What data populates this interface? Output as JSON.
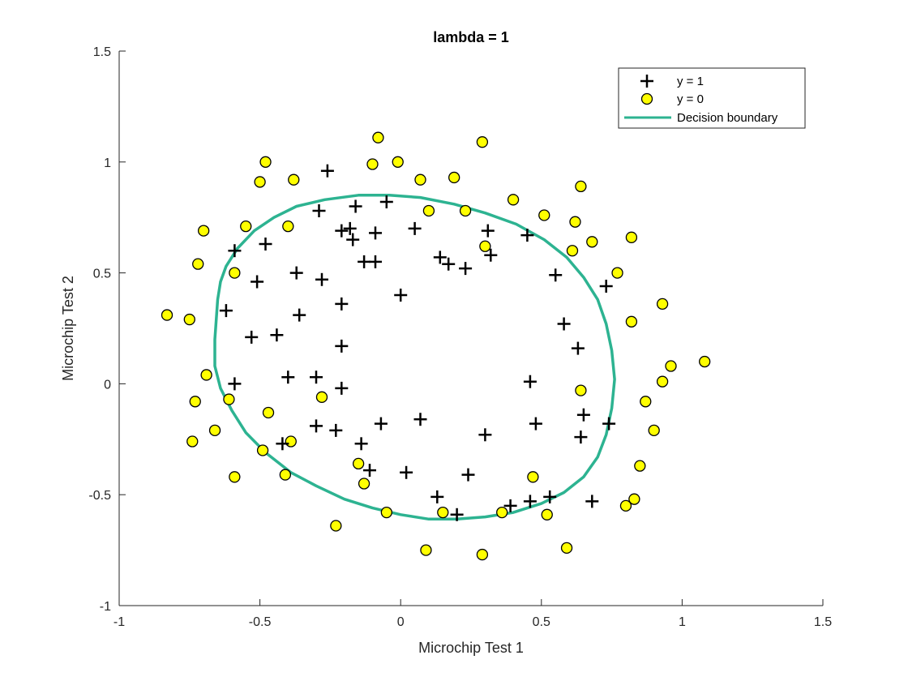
{
  "chart_data": {
    "type": "scatter",
    "title": "lambda = 1",
    "xlabel": "Microchip Test 1",
    "ylabel": "Microchip Test 2",
    "xlim": [
      -1,
      1.5
    ],
    "ylim": [
      -1,
      1.5
    ],
    "xticks": [
      -1,
      -0.5,
      0,
      0.5,
      1,
      1.5
    ],
    "yticks": [
      -1,
      -0.5,
      0,
      0.5,
      1,
      1.5
    ],
    "xtick_labels": [
      "-1",
      "-0.5",
      "0",
      "0.5",
      "1",
      "1.5"
    ],
    "ytick_labels": [
      "-1",
      "-0.5",
      "0",
      "0.5",
      "1",
      "1.5"
    ],
    "grid": false,
    "legend_position": "top-right",
    "colors": {
      "positive": "#000000",
      "negative_fill": "#ffff00",
      "boundary": "#2db391"
    },
    "series": [
      {
        "name": "y = 1",
        "marker": "plus",
        "points": [
          [
            -0.26,
            0.96
          ],
          [
            -0.29,
            0.78
          ],
          [
            -0.16,
            0.8
          ],
          [
            -0.05,
            0.82
          ],
          [
            -0.21,
            0.69
          ],
          [
            -0.18,
            0.7
          ],
          [
            -0.17,
            0.65
          ],
          [
            -0.09,
            0.68
          ],
          [
            0.05,
            0.7
          ],
          [
            0.31,
            0.69
          ],
          [
            0.45,
            0.67
          ],
          [
            -0.59,
            0.6
          ],
          [
            -0.48,
            0.63
          ],
          [
            -0.51,
            0.46
          ],
          [
            -0.37,
            0.5
          ],
          [
            -0.28,
            0.47
          ],
          [
            -0.13,
            0.55
          ],
          [
            -0.09,
            0.55
          ],
          [
            0.14,
            0.57
          ],
          [
            0.17,
            0.54
          ],
          [
            0.23,
            0.52
          ],
          [
            0.32,
            0.58
          ],
          [
            0.55,
            0.49
          ],
          [
            0.73,
            0.44
          ],
          [
            -0.62,
            0.33
          ],
          [
            -0.36,
            0.31
          ],
          [
            -0.21,
            0.36
          ],
          [
            0.0,
            0.4
          ],
          [
            -0.53,
            0.21
          ],
          [
            -0.44,
            0.22
          ],
          [
            -0.21,
            0.17
          ],
          [
            0.58,
            0.27
          ],
          [
            0.63,
            0.16
          ],
          [
            -0.59,
            0.0
          ],
          [
            -0.4,
            0.03
          ],
          [
            -0.3,
            0.03
          ],
          [
            -0.21,
            -0.02
          ],
          [
            0.46,
            0.01
          ],
          [
            -0.3,
            -0.19
          ],
          [
            -0.23,
            -0.21
          ],
          [
            -0.07,
            -0.18
          ],
          [
            0.07,
            -0.16
          ],
          [
            0.3,
            -0.23
          ],
          [
            0.48,
            -0.18
          ],
          [
            0.65,
            -0.14
          ],
          [
            0.64,
            -0.24
          ],
          [
            0.74,
            -0.18
          ],
          [
            -0.42,
            -0.27
          ],
          [
            -0.14,
            -0.27
          ],
          [
            -0.11,
            -0.39
          ],
          [
            0.02,
            -0.4
          ],
          [
            0.24,
            -0.41
          ],
          [
            0.13,
            -0.51
          ],
          [
            0.2,
            -0.59
          ],
          [
            0.39,
            -0.55
          ],
          [
            0.46,
            -0.53
          ],
          [
            0.53,
            -0.51
          ],
          [
            0.68,
            -0.53
          ]
        ]
      },
      {
        "name": "y = 0",
        "marker": "circle",
        "points": [
          [
            -0.08,
            1.11
          ],
          [
            0.29,
            1.09
          ],
          [
            -0.48,
            1.0
          ],
          [
            -0.1,
            0.99
          ],
          [
            -0.01,
            1.0
          ],
          [
            -0.5,
            0.91
          ],
          [
            -0.38,
            0.92
          ],
          [
            0.07,
            0.92
          ],
          [
            0.19,
            0.93
          ],
          [
            0.64,
            0.89
          ],
          [
            0.4,
            0.83
          ],
          [
            0.1,
            0.78
          ],
          [
            0.23,
            0.78
          ],
          [
            0.51,
            0.76
          ],
          [
            0.62,
            0.73
          ],
          [
            -0.7,
            0.69
          ],
          [
            -0.55,
            0.71
          ],
          [
            -0.4,
            0.71
          ],
          [
            0.68,
            0.64
          ],
          [
            0.82,
            0.66
          ],
          [
            0.3,
            0.62
          ],
          [
            0.61,
            0.6
          ],
          [
            -0.72,
            0.54
          ],
          [
            -0.59,
            0.5
          ],
          [
            0.77,
            0.5
          ],
          [
            -0.83,
            0.31
          ],
          [
            -0.75,
            0.29
          ],
          [
            0.93,
            0.36
          ],
          [
            0.82,
            0.28
          ],
          [
            -0.69,
            0.04
          ],
          [
            -0.61,
            -0.07
          ],
          [
            -0.73,
            -0.08
          ],
          [
            -0.28,
            -0.06
          ],
          [
            0.64,
            -0.03
          ],
          [
            0.96,
            0.08
          ],
          [
            0.93,
            0.01
          ],
          [
            1.08,
            0.1
          ],
          [
            0.87,
            -0.08
          ],
          [
            -0.47,
            -0.13
          ],
          [
            0.9,
            -0.21
          ],
          [
            -0.74,
            -0.26
          ],
          [
            -0.66,
            -0.21
          ],
          [
            -0.49,
            -0.3
          ],
          [
            -0.39,
            -0.26
          ],
          [
            -0.15,
            -0.36
          ],
          [
            0.85,
            -0.37
          ],
          [
            -0.59,
            -0.42
          ],
          [
            -0.41,
            -0.41
          ],
          [
            -0.13,
            -0.45
          ],
          [
            0.47,
            -0.42
          ],
          [
            0.83,
            -0.52
          ],
          [
            0.8,
            -0.55
          ],
          [
            -0.05,
            -0.58
          ],
          [
            0.15,
            -0.58
          ],
          [
            0.36,
            -0.58
          ],
          [
            0.52,
            -0.59
          ],
          [
            -0.23,
            -0.64
          ],
          [
            0.59,
            -0.74
          ],
          [
            0.09,
            -0.75
          ],
          [
            0.29,
            -0.77
          ]
        ]
      }
    ],
    "boundary": {
      "name": "Decision boundary",
      "points": [
        [
          -0.66,
          0.2
        ],
        [
          -0.65,
          0.38
        ],
        [
          -0.64,
          0.46
        ],
        [
          -0.62,
          0.53
        ],
        [
          -0.58,
          0.61
        ],
        [
          -0.52,
          0.69
        ],
        [
          -0.45,
          0.75
        ],
        [
          -0.37,
          0.8
        ],
        [
          -0.27,
          0.83
        ],
        [
          -0.15,
          0.85
        ],
        [
          -0.04,
          0.85
        ],
        [
          0.07,
          0.84
        ],
        [
          0.19,
          0.81
        ],
        [
          0.3,
          0.77
        ],
        [
          0.41,
          0.72
        ],
        [
          0.51,
          0.65
        ],
        [
          0.59,
          0.57
        ],
        [
          0.65,
          0.48
        ],
        [
          0.7,
          0.38
        ],
        [
          0.73,
          0.27
        ],
        [
          0.75,
          0.15
        ],
        [
          0.76,
          0.02
        ],
        [
          0.75,
          -0.11
        ],
        [
          0.73,
          -0.23
        ],
        [
          0.7,
          -0.33
        ],
        [
          0.65,
          -0.42
        ],
        [
          0.58,
          -0.49
        ],
        [
          0.5,
          -0.54
        ],
        [
          0.4,
          -0.58
        ],
        [
          0.3,
          -0.6
        ],
        [
          0.2,
          -0.61
        ],
        [
          0.1,
          -0.61
        ],
        [
          0.0,
          -0.59
        ],
        [
          -0.1,
          -0.56
        ],
        [
          -0.2,
          -0.52
        ],
        [
          -0.3,
          -0.46
        ],
        [
          -0.39,
          -0.4
        ],
        [
          -0.48,
          -0.31
        ],
        [
          -0.55,
          -0.22
        ],
        [
          -0.6,
          -0.12
        ],
        [
          -0.64,
          -0.02
        ],
        [
          -0.66,
          0.08
        ],
        [
          -0.66,
          0.2
        ]
      ]
    }
  }
}
